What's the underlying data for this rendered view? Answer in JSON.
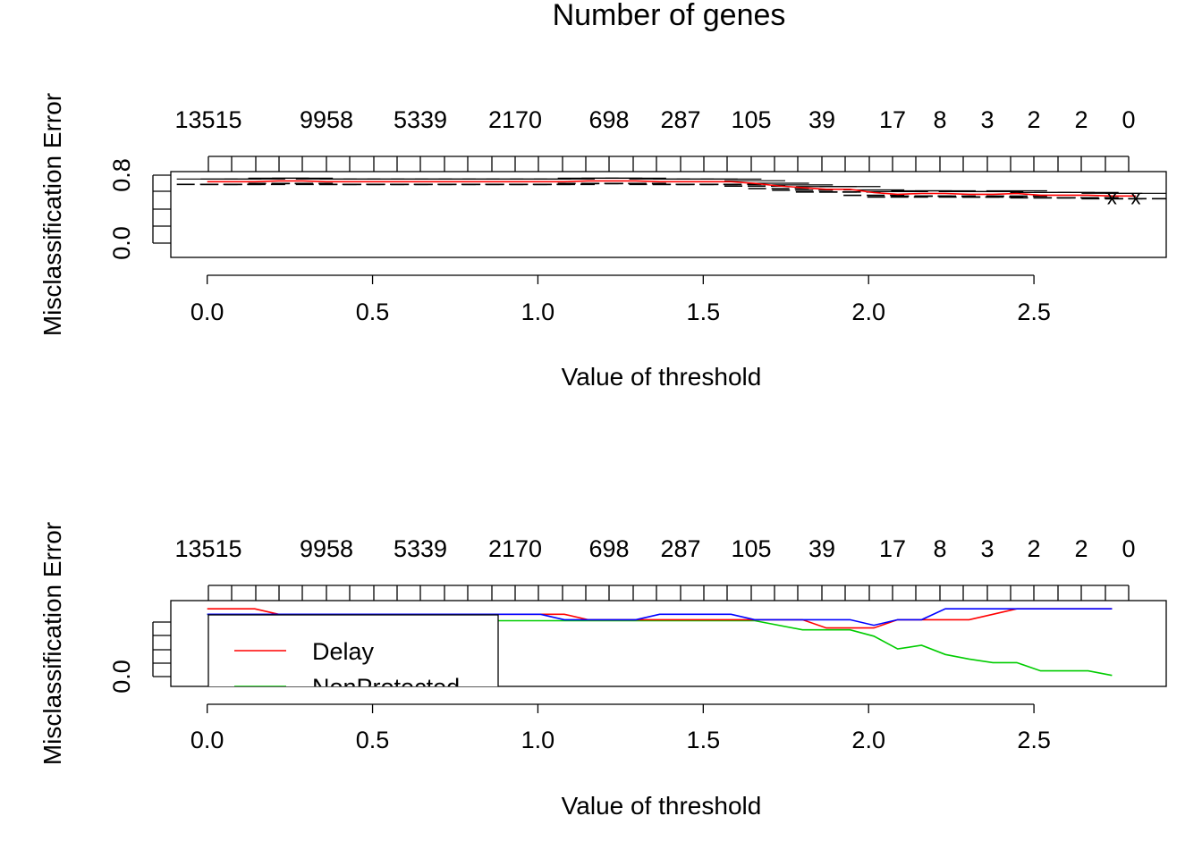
{
  "title": "Number of genes",
  "chart_data": [
    {
      "type": "line",
      "xlabel": "Value of threshold",
      "ylabel": "Misclassification Error",
      "xlim": [
        -0.11,
        2.9
      ],
      "ylim": [
        -0.12,
        0.9
      ],
      "xticks": [
        "0.0",
        "0.5",
        "1.0",
        "1.5",
        "2.0",
        "2.5"
      ],
      "yticks": [
        "0.0",
        "0.8"
      ],
      "top_axis": {
        "label": "Number of genes",
        "labels": [
          "13515",
          "9958",
          "5339",
          "2170",
          "698",
          "287",
          "105",
          "39",
          "17",
          "8",
          "3",
          "2",
          "2",
          "0"
        ]
      },
      "threshold": [
        0.0,
        0.072,
        0.144,
        0.216,
        0.288,
        0.36,
        0.432,
        0.504,
        0.576,
        0.648,
        0.72,
        0.792,
        0.864,
        0.936,
        1.008,
        1.08,
        1.152,
        1.224,
        1.296,
        1.368,
        1.44,
        1.512,
        1.584,
        1.656,
        1.728,
        1.8,
        1.872,
        1.944,
        2.016,
        2.088,
        2.16,
        2.232,
        2.304,
        2.376,
        2.448,
        2.52,
        2.592,
        2.664,
        2.736,
        2.808
      ],
      "series": [
        {
          "values": [
            0.78,
            0.78,
            0.78,
            0.79,
            0.79,
            0.78,
            0.78,
            0.78,
            0.78,
            0.78,
            0.78,
            0.78,
            0.78,
            0.78,
            0.78,
            0.78,
            0.79,
            0.79,
            0.79,
            0.78,
            0.78,
            0.78,
            0.78,
            0.76,
            0.73,
            0.71,
            0.69,
            0.69,
            0.65,
            0.63,
            0.64,
            0.64,
            0.63,
            0.63,
            0.64,
            0.62,
            0.62,
            0.62,
            0.61,
            0.61
          ],
          "color": "#ff0000"
        }
      ],
      "error_bars": "black dashed",
      "marker_x": [
        2.736,
        2.808
      ]
    },
    {
      "type": "line",
      "xlabel": "Value of threshold",
      "ylabel": "Misclassification Error",
      "xlim": [
        -0.11,
        2.9
      ],
      "ylim": [
        -0.12,
        0.82
      ],
      "xticks": [
        "0.0",
        "0.5",
        "1.0",
        "1.5",
        "2.0",
        "2.5"
      ],
      "yticks": [
        "0.0"
      ],
      "top_axis": {
        "labels": [
          "13515",
          "9958",
          "5339",
          "2170",
          "698",
          "287",
          "105",
          "39",
          "17",
          "8",
          "3",
          "2",
          "2",
          "0"
        ]
      },
      "legend": {
        "placement": "bottom-left",
        "entries": [
          {
            "label": "Delay",
            "color": "#ff0000"
          },
          {
            "label": "NonProtected",
            "color": "#00cc00"
          }
        ]
      },
      "series": [
        {
          "name": "Delay",
          "color": "#ff0000",
          "x": [
            0.0,
            0.144,
            0.216,
            1.008,
            1.08,
            1.152,
            1.656,
            1.8,
            1.872,
            2.016,
            2.088,
            2.304,
            2.448,
            2.736
          ],
          "y": [
            0.73,
            0.73,
            0.67,
            0.67,
            0.67,
            0.61,
            0.61,
            0.61,
            0.52,
            0.52,
            0.61,
            0.61,
            0.73,
            0.73
          ]
        },
        {
          "name": "NonProtected",
          "color": "#00cc00",
          "x": [
            0.0,
            0.864,
            1.656,
            1.8,
            1.872,
            1.944,
            2.016,
            2.088,
            2.16,
            2.232,
            2.304,
            2.376,
            2.448,
            2.52,
            2.592,
            2.664,
            2.736
          ],
          "y": [
            0.67,
            0.6,
            0.6,
            0.5,
            0.5,
            0.5,
            0.43,
            0.29,
            0.33,
            0.23,
            0.18,
            0.14,
            0.14,
            0.05,
            0.05,
            0.05,
            0.0
          ],
          "note": "partially hidden behind legend box"
        },
        {
          "color": "#0000ff",
          "x": [
            0.0,
            1.008,
            1.08,
            1.296,
            1.368,
            1.584,
            1.656,
            1.944,
            2.016,
            2.088,
            2.16,
            2.232,
            2.736
          ],
          "y": [
            0.67,
            0.67,
            0.61,
            0.61,
            0.67,
            0.67,
            0.61,
            0.61,
            0.55,
            0.61,
            0.61,
            0.73,
            0.73
          ]
        }
      ]
    }
  ]
}
